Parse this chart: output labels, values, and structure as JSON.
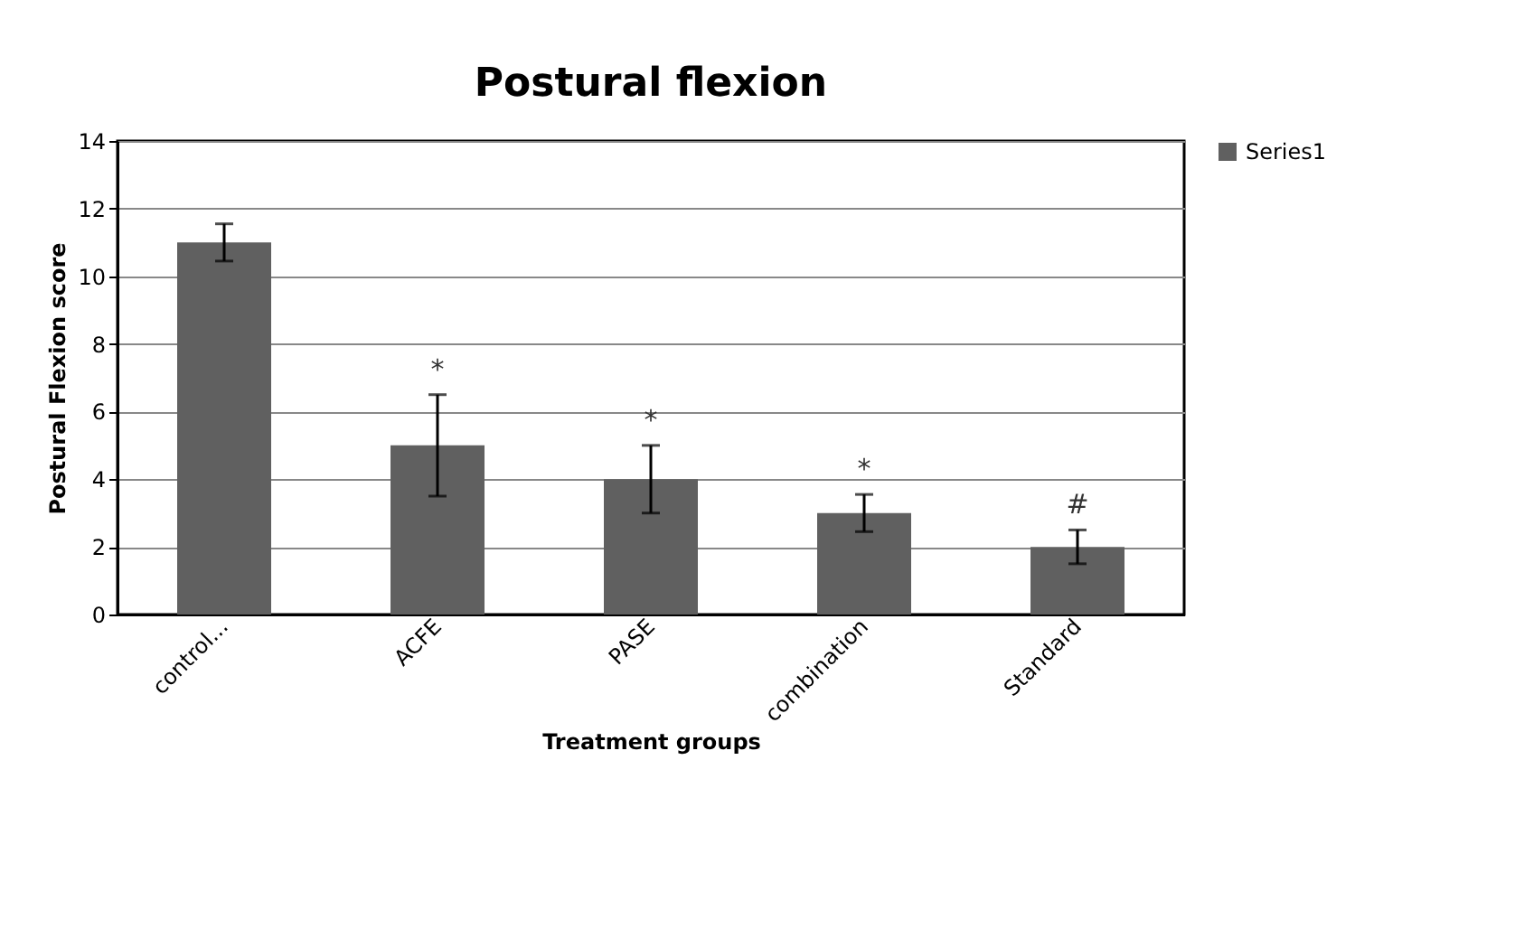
{
  "chart_data": {
    "type": "bar",
    "title": "Postural flexion",
    "xlabel": "Treatment groups",
    "ylabel": "Postural Flexion score",
    "categories": [
      "control...",
      "ACFE",
      "PASE",
      "combination",
      "Standard"
    ],
    "series": [
      {
        "name": "Series1",
        "color": "#606060",
        "values": [
          11,
          5,
          4,
          3,
          2
        ],
        "errors": [
          0.55,
          1.5,
          1,
          0.55,
          0.5
        ]
      }
    ],
    "ylim": [
      0,
      14
    ],
    "yticks": [
      0,
      2,
      4,
      6,
      8,
      10,
      12,
      14
    ],
    "grid": "y",
    "legend": "right",
    "annotations": [
      {
        "text": "*",
        "x": "ACFE",
        "y": 5
      },
      {
        "text": "*",
        "x": "PASE",
        "y": 4
      },
      {
        "text": "*",
        "x": "combination",
        "y": 3
      },
      {
        "text": "#",
        "x": "Standard",
        "y": 2
      }
    ]
  }
}
